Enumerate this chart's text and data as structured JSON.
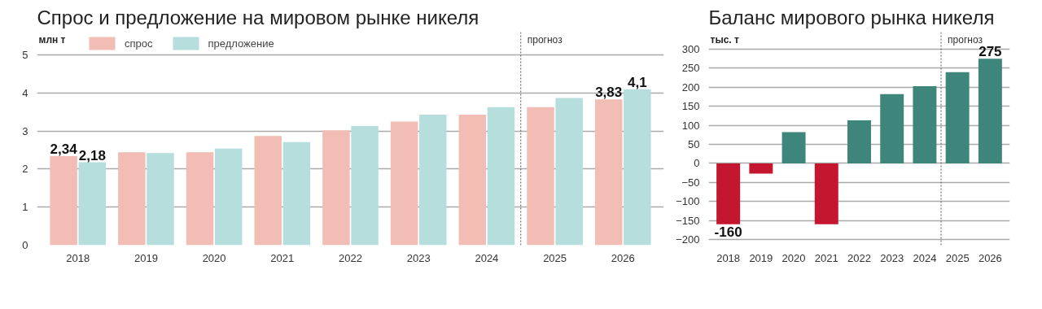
{
  "chart_data": [
    {
      "type": "bar",
      "title": "Спрос и предложение на мировом рынке никеля",
      "ylabel": "млн т",
      "categories": [
        "2018",
        "2019",
        "2020",
        "2021",
        "2022",
        "2023",
        "2024",
        "2025",
        "2026"
      ],
      "series": [
        {
          "name": "спрос",
          "color": "#f2bdb5",
          "values": [
            2.34,
            2.44,
            2.44,
            2.87,
            3.02,
            3.25,
            3.43,
            3.63,
            3.83
          ],
          "value_labels": [
            "2,34",
            null,
            null,
            null,
            null,
            null,
            null,
            null,
            "3,83"
          ]
        },
        {
          "name": "предложение",
          "color": "#b5dedd",
          "values": [
            2.18,
            2.42,
            2.54,
            2.71,
            3.13,
            3.43,
            3.63,
            3.87,
            4.1
          ],
          "value_labels": [
            "2,18",
            null,
            null,
            null,
            null,
            null,
            null,
            null,
            "4,1"
          ]
        }
      ],
      "ylim": [
        0,
        5.6
      ],
      "yticks": [
        0,
        1,
        2,
        3,
        4,
        5
      ],
      "grid": "y",
      "legend": "top left",
      "ref_lines": [
        {
          "axis": "x",
          "value": "2025",
          "label": "прогноз",
          "line_style": "dotted"
        }
      ]
    },
    {
      "type": "bar",
      "title": "Баланс мирового рынка никеля",
      "ylabel": "тыс. т",
      "categories": [
        "2018",
        "2019",
        "2020",
        "2021",
        "2022",
        "2023",
        "2024",
        "2025",
        "2026"
      ],
      "values": [
        -160,
        -27,
        82,
        -160,
        113,
        182,
        203,
        240,
        275
      ],
      "colors": [
        "#c4162f",
        "#c4162f",
        "#3e857c",
        "#c4162f",
        "#3e857c",
        "#3e857c",
        "#3e857c",
        "#3e857c",
        "#3e857c"
      ],
      "value_labels": [
        "-160",
        null,
        null,
        null,
        null,
        null,
        null,
        null,
        "275"
      ],
      "ylim": [
        -215,
        345
      ],
      "yticks": [
        -200,
        -150,
        -100,
        -50,
        0,
        50,
        100,
        150,
        200,
        250,
        300
      ],
      "grid": "y",
      "ref_lines": [
        {
          "axis": "x",
          "value": "2025",
          "label": "прогноз",
          "line_style": "dotted"
        }
      ]
    }
  ]
}
